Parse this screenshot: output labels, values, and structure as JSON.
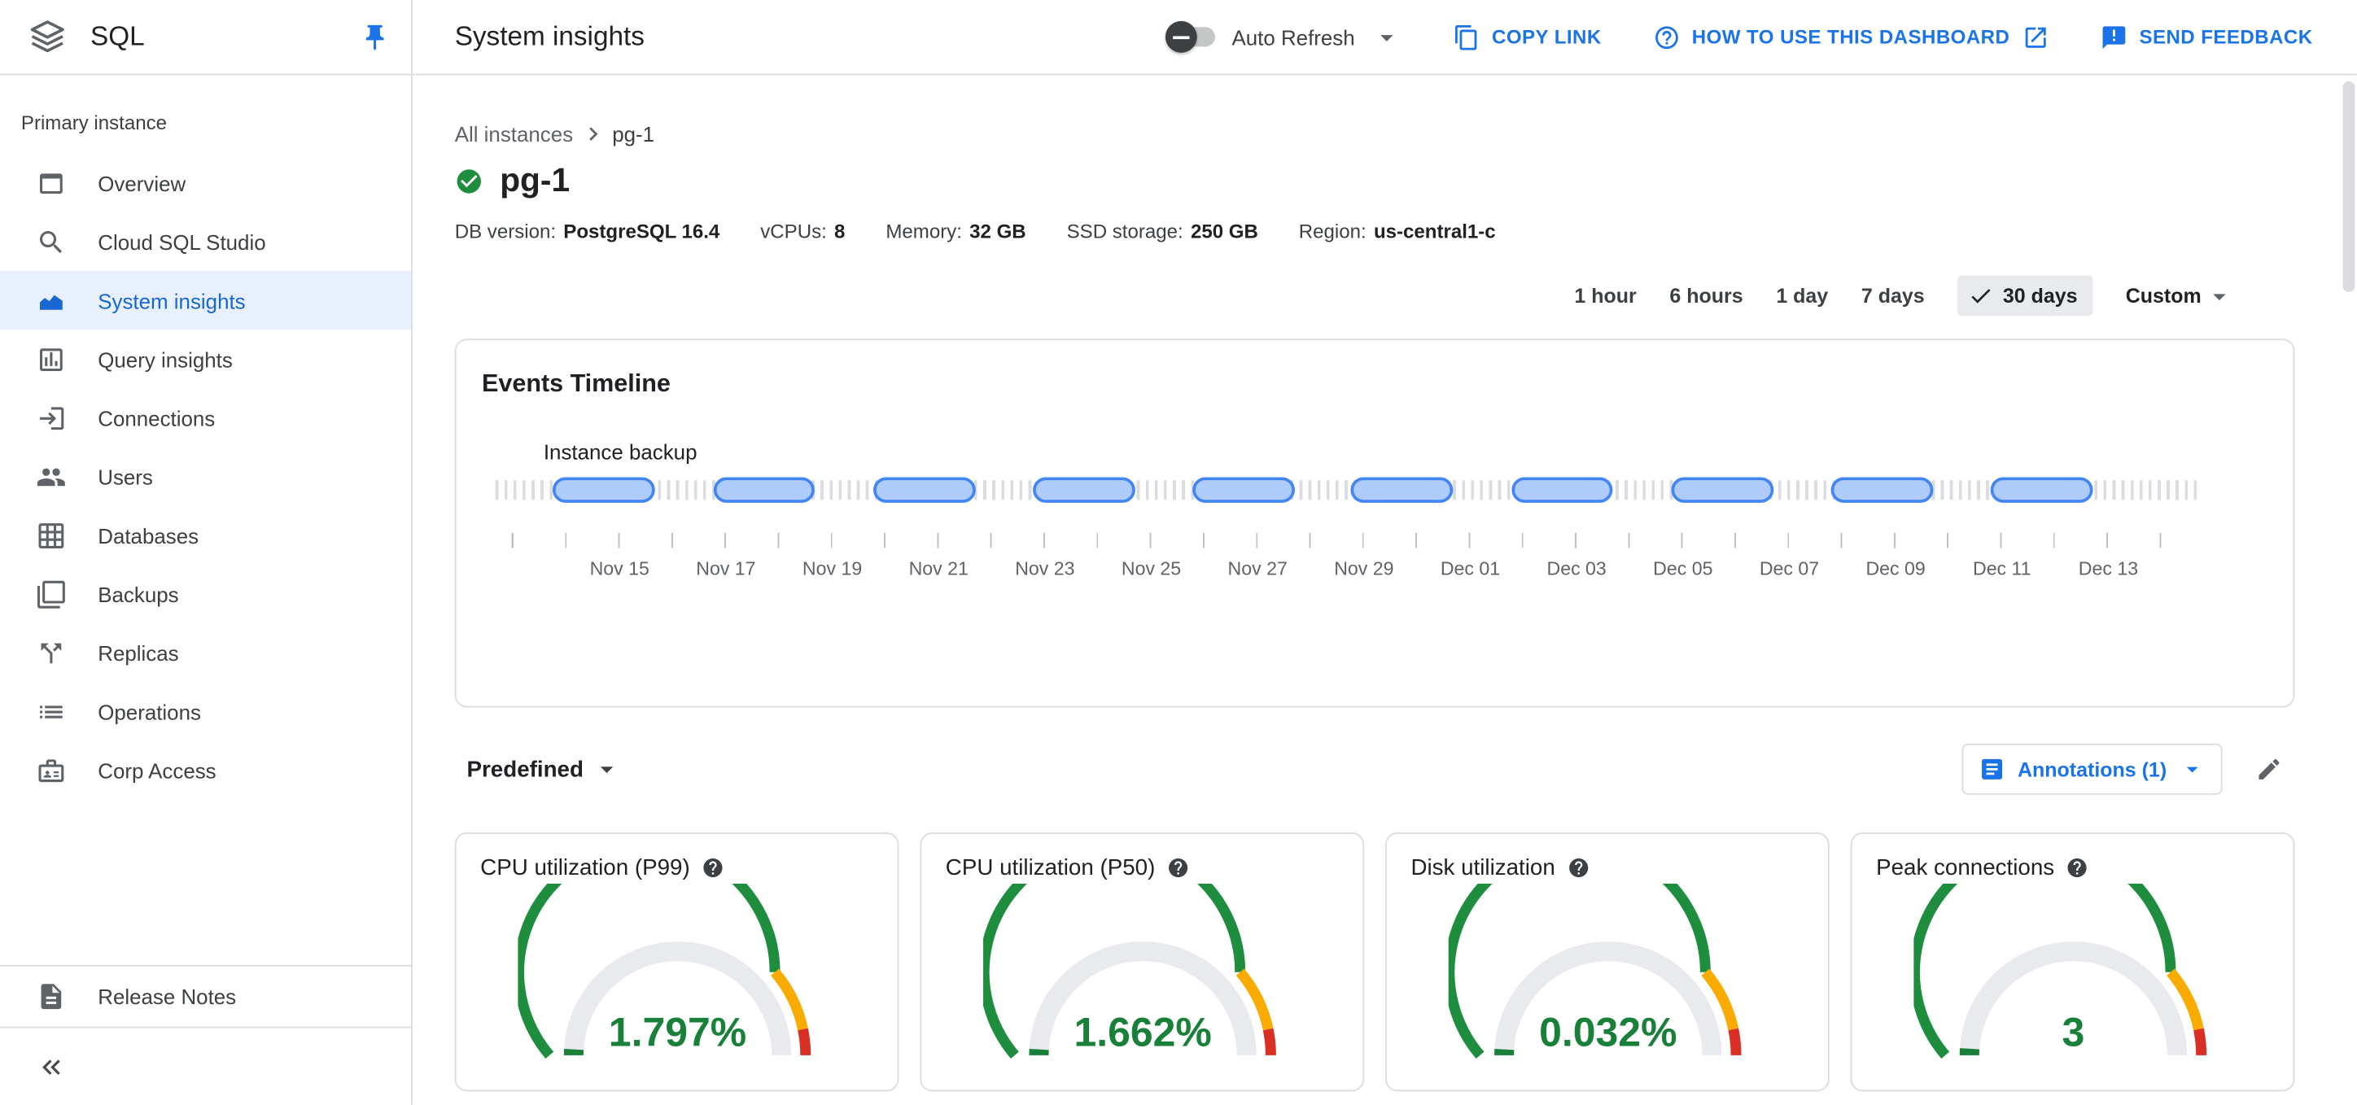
{
  "colors": {
    "accent_blue": "#1a73e8",
    "selected_nav_blue": "#1967d2",
    "selected_nav_bg": "#e8f0fe",
    "zone_green": "#1e8e3e",
    "zone_orange": "#f9ab00",
    "zone_red": "#d93025",
    "gauge_track": "#e8eaed",
    "gauge_value_green": "#188038",
    "event_fill": "#aecbfa",
    "event_border": "#4285f4"
  },
  "sidebar": {
    "title": "SQL",
    "section_label": "Primary instance",
    "items": [
      {
        "label": "Overview",
        "icon": "overview-icon",
        "selected": false
      },
      {
        "label": "Cloud SQL Studio",
        "icon": "sql-studio-icon",
        "selected": false
      },
      {
        "label": "System insights",
        "icon": "system-insights-icon",
        "selected": true
      },
      {
        "label": "Query insights",
        "icon": "query-insights-icon",
        "selected": false
      },
      {
        "label": "Connections",
        "icon": "connections-icon",
        "selected": false
      },
      {
        "label": "Users",
        "icon": "users-icon",
        "selected": false
      },
      {
        "label": "Databases",
        "icon": "databases-icon",
        "selected": false
      },
      {
        "label": "Backups",
        "icon": "backups-icon",
        "selected": false
      },
      {
        "label": "Replicas",
        "icon": "replicas-icon",
        "selected": false
      },
      {
        "label": "Operations",
        "icon": "operations-icon",
        "selected": false
      },
      {
        "label": "Corp Access",
        "icon": "corp-access-icon",
        "selected": false
      }
    ],
    "release_notes_label": "Release Notes"
  },
  "header": {
    "title": "System insights",
    "auto_refresh_label": "Auto Refresh",
    "auto_refresh_enabled": false,
    "copy_link_label": "COPY LINK",
    "how_to_label": "HOW TO USE THIS DASHBOARD",
    "send_feedback_label": "SEND FEEDBACK"
  },
  "breadcrumb": {
    "parent": "All instances",
    "current": "pg-1"
  },
  "instance": {
    "name": "pg-1",
    "status": "running",
    "specs": [
      {
        "label": "DB version:",
        "value": "PostgreSQL 16.4"
      },
      {
        "label": "vCPUs:",
        "value": "8"
      },
      {
        "label": "Memory:",
        "value": "32 GB"
      },
      {
        "label": "SSD storage:",
        "value": "250 GB"
      },
      {
        "label": "Region:",
        "value": "us-central1-c"
      }
    ]
  },
  "time_range": {
    "options": [
      "1 hour",
      "6 hours",
      "1 day",
      "7 days",
      "30 days"
    ],
    "selected": "30 days",
    "custom_label": "Custom"
  },
  "filters": {
    "predefined_label": "Predefined",
    "annotations_label": "Annotations (1)"
  },
  "gauge_style": {
    "zones": [
      {
        "to": 0.775,
        "color": "#1e8e3e"
      },
      {
        "to": 0.935,
        "color": "#f9ab00"
      },
      {
        "to": 1,
        "color": "#d93025"
      }
    ],
    "track_color": "#e8eaed",
    "value_color": "#188038"
  },
  "chart_data": [
    {
      "type": "timeline",
      "panel_title": "Events Timeline",
      "series_label": "Instance backup",
      "backup_positions_pct": [
        3.4,
        12.8,
        22.2,
        31.6,
        41.0,
        50.3,
        59.7,
        69.1,
        78.5,
        87.9
      ],
      "event_width_pct": 6,
      "axis_labels": [
        "Nov 15",
        "Nov 17",
        "Nov 19",
        "Nov 21",
        "Nov 23",
        "Nov 25",
        "Nov 27",
        "Nov 29",
        "Dec 01",
        "Dec 03",
        "Dec 05",
        "Dec 07",
        "Dec 09",
        "Dec 11",
        "Dec 13"
      ]
    },
    {
      "type": "gauge",
      "title": "CPU utilization (P99)",
      "value": 1.797,
      "unit": "%",
      "display_value": "1.797%",
      "gauge_fraction": 0.018
    },
    {
      "type": "gauge",
      "title": "CPU utilization (P50)",
      "value": 1.662,
      "unit": "%",
      "display_value": "1.662%",
      "gauge_fraction": 0.017
    },
    {
      "type": "gauge",
      "title": "Disk utilization",
      "value": 0.032,
      "unit": "%",
      "display_value": "0.032%",
      "gauge_fraction": 0.002
    },
    {
      "type": "gauge",
      "title": "Peak connections",
      "value": 3,
      "unit": "",
      "display_value": "3",
      "gauge_fraction": 0.02
    }
  ]
}
